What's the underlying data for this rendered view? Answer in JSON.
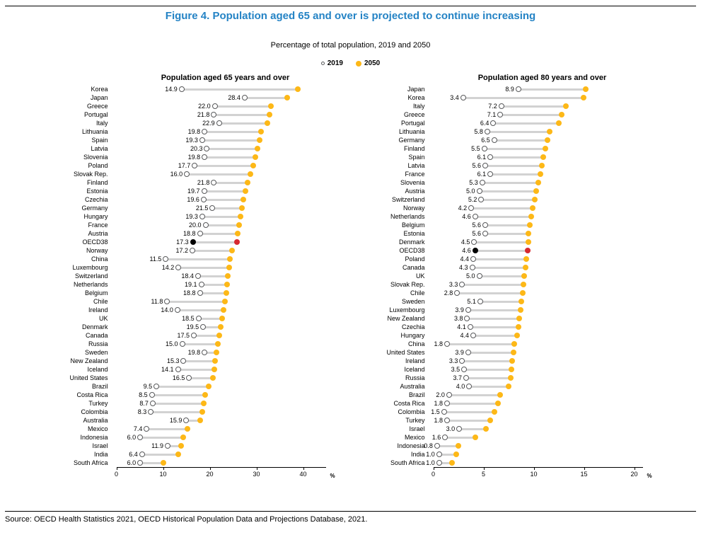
{
  "figure": {
    "title": "Figure 4. Population aged 65 and over is projected to continue increasing",
    "subtitle": "Percentage of total population, 2019 and 2050",
    "source": "Source: OECD Health Statistics 2021, OECD Historical Population Data and Projections Database, 2021.",
    "legend": [
      {
        "label": "2019",
        "marker": "open-circle"
      },
      {
        "label": "2050",
        "marker": "filled-circle-yellow"
      }
    ]
  },
  "colors": {
    "title_blue": "#2483C5",
    "open_border": "#58595B",
    "fill_2050": "#FDB817",
    "connector": "#D2D2D2",
    "oecd_red": "#D7282F"
  },
  "chart_data": [
    {
      "type": "scatter",
      "variant": "dumbbell",
      "title": "Population aged 65 years and over",
      "xlabel": "%",
      "xlim": [
        0,
        45
      ],
      "xticks": [
        0,
        10,
        20,
        30,
        40
      ],
      "grid": false,
      "legend_position": "top-center",
      "highlight_category": "OECD38",
      "labeled_series": "2019",
      "categories": [
        "Korea",
        "Japan",
        "Greece",
        "Portugal",
        "Italy",
        "Lithuania",
        "Spain",
        "Latvia",
        "Slovenia",
        "Poland",
        "Slovak Rep.",
        "Finland",
        "Estonia",
        "Czechia",
        "Germany",
        "Hungary",
        "France",
        "Austria",
        "OECD38",
        "Norway",
        "China",
        "Luxembourg",
        "Switzerland",
        "Netherlands",
        "Belgium",
        "Chile",
        "Ireland",
        "UK",
        "Denmark",
        "Canada",
        "Russia",
        "Sweden",
        "New Zealand",
        "Iceland",
        "United States",
        "Brazil",
        "Costa Rica",
        "Turkey",
        "Colombia",
        "Australia",
        "Mexico",
        "Indonesia",
        "Israel",
        "India",
        "South Africa"
      ],
      "series": [
        {
          "name": "2019",
          "values": [
            14.9,
            28.4,
            22.0,
            21.8,
            22.9,
            19.8,
            19.3,
            20.3,
            19.8,
            17.7,
            16.0,
            21.8,
            19.7,
            19.6,
            21.5,
            19.3,
            20.0,
            18.8,
            17.3,
            17.2,
            11.5,
            14.2,
            18.4,
            19.1,
            18.8,
            11.8,
            14.0,
            18.5,
            19.5,
            17.5,
            15.0,
            19.8,
            15.3,
            14.1,
            16.5,
            9.5,
            8.5,
            8.7,
            8.3,
            15.9,
            7.4,
            6.0,
            11.9,
            6.4,
            6.0
          ]
        },
        {
          "name": "2050",
          "values": [
            39.8,
            37.5,
            34.0,
            33.7,
            33.3,
            31.9,
            31.6,
            31.1,
            30.7,
            30.2,
            29.6,
            29.0,
            28.5,
            28.1,
            27.8,
            27.5,
            27.2,
            26.9,
            26.7,
            25.7,
            25.3,
            25.0,
            24.8,
            24.6,
            24.4,
            24.1,
            23.8,
            23.5,
            23.2,
            23.0,
            22.6,
            22.3,
            22.1,
            21.9,
            21.6,
            20.7,
            19.9,
            19.6,
            19.3,
            18.9,
            16.2,
            15.3,
            14.7,
            14.2,
            11.0
          ]
        }
      ]
    },
    {
      "type": "scatter",
      "variant": "dumbbell",
      "title": "Population aged 80 years and over",
      "xlabel": "%",
      "xlim": [
        0,
        21
      ],
      "xticks": [
        0,
        5,
        10,
        15,
        20
      ],
      "grid": false,
      "legend_position": "top-center",
      "highlight_category": "OECD38",
      "labeled_series": "2019",
      "categories": [
        "Japan",
        "Korea",
        "Italy",
        "Greece",
        "Portugal",
        "Lithuania",
        "Germany",
        "Finland",
        "Spain",
        "Latvia",
        "France",
        "Slovenia",
        "Austria",
        "Switzerland",
        "Norway",
        "Netherlands",
        "Belgium",
        "Estonia",
        "Denmark",
        "OECD38",
        "Poland",
        "Canada",
        "UK",
        "Slovak Rep.",
        "Chile",
        "Sweden",
        "Luxembourg",
        "New Zealand",
        "Czechia",
        "Hungary",
        "China",
        "United States",
        "Ireland",
        "Iceland",
        "Russia",
        "Australia",
        "Brazil",
        "Costa Rica",
        "Colombia",
        "Turkey",
        "Israel",
        "Mexico",
        "Indonesia",
        "India",
        "South Africa"
      ],
      "series": [
        {
          "name": "2019",
          "values": [
            8.9,
            3.4,
            7.2,
            7.1,
            6.4,
            5.8,
            6.5,
            5.5,
            6.1,
            5.6,
            6.1,
            5.3,
            5.0,
            5.2,
            4.2,
            4.6,
            5.6,
            5.6,
            4.5,
            4.6,
            4.4,
            4.3,
            5.0,
            3.3,
            2.8,
            5.1,
            3.9,
            3.8,
            4.1,
            4.4,
            1.8,
            3.9,
            3.3,
            3.5,
            3.7,
            4.0,
            2.0,
            1.8,
            1.5,
            1.8,
            3.0,
            1.6,
            0.8,
            1.0,
            1.0
          ]
        },
        {
          "name": "2050",
          "values": [
            15.6,
            15.4,
            13.6,
            13.2,
            12.9,
            12.0,
            11.8,
            11.6,
            11.4,
            11.2,
            11.1,
            10.9,
            10.7,
            10.5,
            10.3,
            10.2,
            10.0,
            9.9,
            9.9,
            9.8,
            9.7,
            9.6,
            9.5,
            9.4,
            9.3,
            9.2,
            9.1,
            9.0,
            8.9,
            8.8,
            8.5,
            8.4,
            8.3,
            8.2,
            8.1,
            7.9,
            7.1,
            6.9,
            6.5,
            6.1,
            5.7,
            4.6,
            2.9,
            2.7,
            2.3
          ]
        }
      ]
    }
  ]
}
